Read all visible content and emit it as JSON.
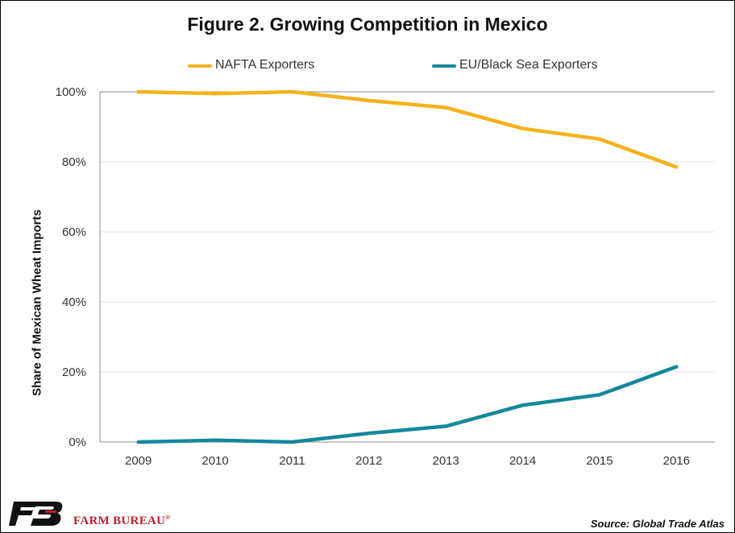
{
  "colors": {
    "nafta": "#f5b21c",
    "eu_black_sea": "#14889a",
    "brand_red": "#c0202b",
    "logo_black": "#111111"
  },
  "chart_data": {
    "type": "line",
    "title": "Figure 2. Growing Competition in Mexico",
    "xlabel": "",
    "ylabel": "Share of Mexican Wheat Imports",
    "categories": [
      "2009",
      "2010",
      "2011",
      "2012",
      "2013",
      "2014",
      "2015",
      "2016"
    ],
    "y_ticks": [
      "0%",
      "20%",
      "40%",
      "60%",
      "80%",
      "100%"
    ],
    "ylim": [
      0,
      100
    ],
    "y_unit": "%",
    "grid": "horizontal",
    "legend": "top",
    "series": [
      {
        "name": "NAFTA Exporters",
        "color": "#f5b21c",
        "values": [
          100,
          99.5,
          100,
          97.5,
          95.5,
          89.5,
          86.5,
          78.5
        ]
      },
      {
        "name": "EU/Black Sea Exporters",
        "color": "#14889a",
        "values": [
          0,
          0.5,
          0,
          2.5,
          4.5,
          10.5,
          13.5,
          21.5
        ]
      }
    ]
  },
  "footer": {
    "brand": "FARM BUREAU",
    "brand_mark": "®",
    "logo_icon": "farm-bureau-fb-logo",
    "source": "Source: Global Trade Atlas"
  }
}
